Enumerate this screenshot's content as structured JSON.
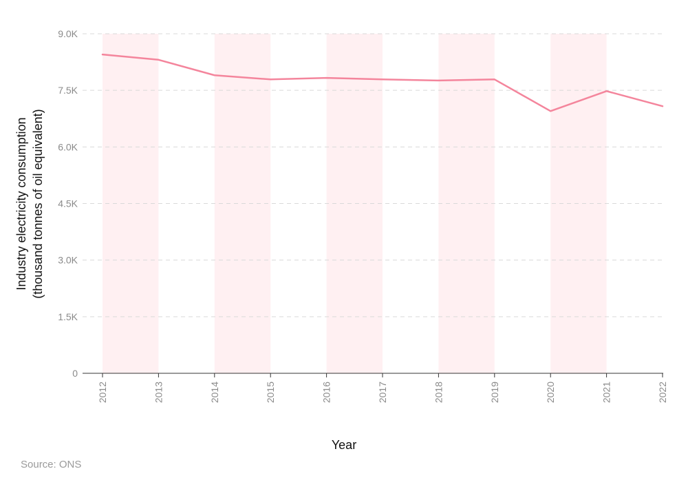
{
  "chart_data": {
    "type": "line",
    "x": [
      "2012",
      "2013",
      "2014",
      "2015",
      "2016",
      "2017",
      "2018",
      "2019",
      "2020",
      "2021",
      "2022"
    ],
    "series": [
      {
        "values": [
          8450,
          8310,
          7900,
          7790,
          7830,
          7790,
          7760,
          7790,
          6950,
          7480,
          7080
        ]
      }
    ],
    "xlabel": "Year",
    "ylabel_lines": [
      "Industry electricity consumption",
      "(thousand tonnes of oil equivalent)"
    ],
    "ylim": [
      0,
      9000
    ],
    "yticks": [
      {
        "value": 0,
        "label": "0"
      },
      {
        "value": 1500,
        "label": "1.5K"
      },
      {
        "value": 3000,
        "label": "3.0K"
      },
      {
        "value": 4500,
        "label": "4.5K"
      },
      {
        "value": 6000,
        "label": "6.0K"
      },
      {
        "value": 7500,
        "label": "7.5K"
      },
      {
        "value": 9000,
        "label": "9.0K"
      }
    ],
    "shaded_bands": [
      [
        0,
        1
      ],
      [
        2,
        3
      ],
      [
        4,
        5
      ],
      [
        6,
        7
      ],
      [
        8,
        9
      ]
    ],
    "grid": "horizontal dashed",
    "colors": {
      "line": "#f4859c",
      "band": "#fff0f2",
      "grid": "#d9d9d9",
      "axis": "#333333"
    }
  },
  "source": "Source: ONS"
}
